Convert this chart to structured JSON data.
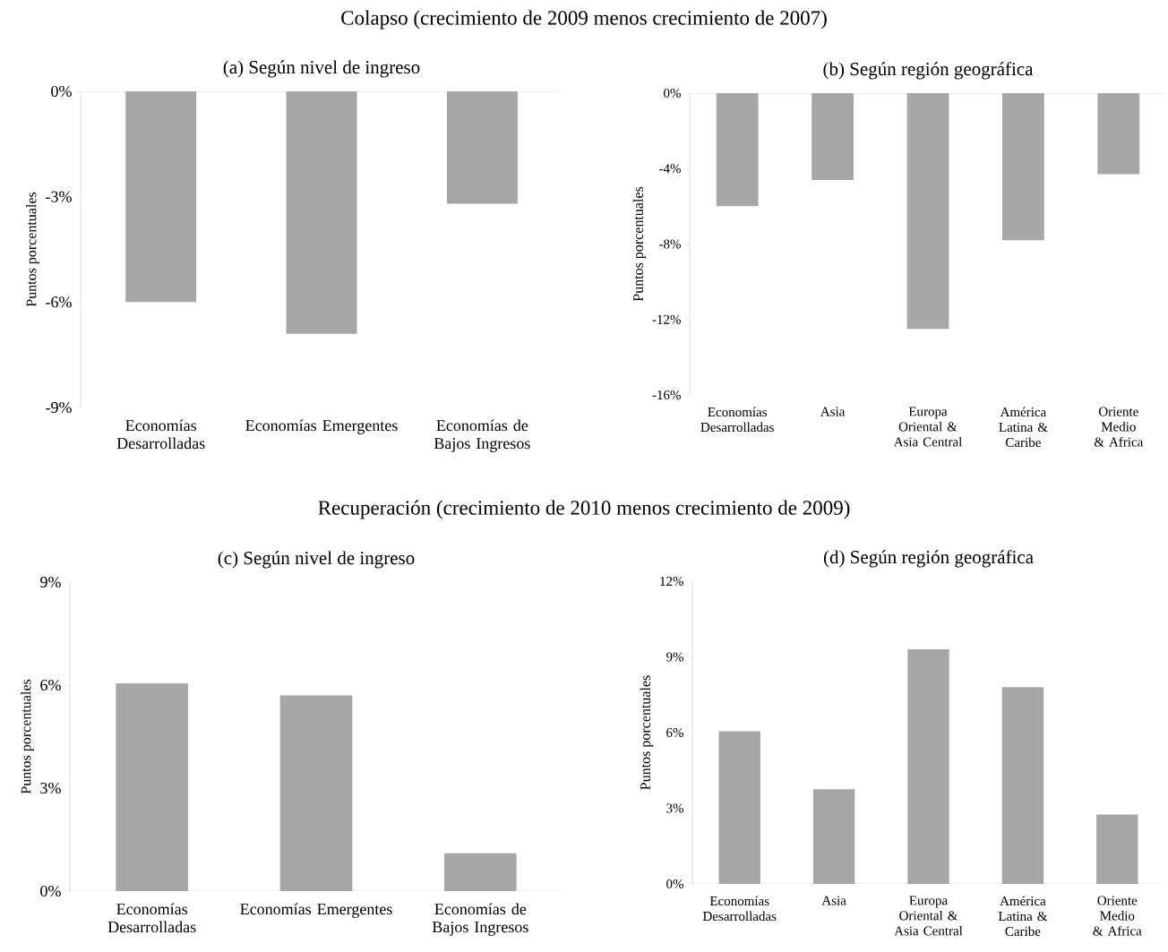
{
  "chart_data": [
    {
      "type": "bar",
      "title": "(a) Según nivel de ingreso",
      "annotations": [
        "Colapso (crecimiento de 2009 menos crecimiento de 2007)"
      ],
      "ylabel": "Puntos porcentuales",
      "categories": [
        "Economías Desarrolladas",
        "Economías Emergentes",
        "Economías de Bajos Ingresos"
      ],
      "values": [
        -6.0,
        -6.9,
        -3.2
      ],
      "color": "#a6a6a6",
      "ylim": [
        -9,
        0
      ],
      "yticks": [
        {
          "value": -9,
          "label": "-9%"
        },
        {
          "value": -6,
          "label": "-6%"
        },
        {
          "value": -3,
          "label": "-3%"
        },
        {
          "value": 0,
          "label": "0%"
        }
      ]
    },
    {
      "type": "bar",
      "title": "(b) Según región geográfica",
      "ylabel": "Puntos porcentuales",
      "categories": [
        "Economías Desarrolladas",
        "Asia",
        "Europa Oriental & Asia Central",
        "América Latina & Caribe",
        "Oriente Medio & Africa"
      ],
      "values": [
        -6.0,
        -4.6,
        -12.5,
        -7.8,
        -4.3
      ],
      "color": "#a6a6a6",
      "ylim": [
        -16,
        0
      ],
      "yticks": [
        {
          "value": -16,
          "label": "-16%"
        },
        {
          "value": -12,
          "label": "-12%"
        },
        {
          "value": -8,
          "label": "-8%"
        },
        {
          "value": -4,
          "label": "-4%"
        },
        {
          "value": 0,
          "label": "0%"
        }
      ]
    },
    {
      "type": "bar",
      "title": "(c) Según nivel de ingreso",
      "annotations": [
        "Recuperación (crecimiento de 2010 menos crecimiento de 2009)"
      ],
      "ylabel": "Puntos porcentuales",
      "categories": [
        "Economías Desarrolladas",
        "Economías Emergentes",
        "Economías de Bajos Ingresos"
      ],
      "values": [
        6.05,
        5.7,
        1.1
      ],
      "color": "#a6a6a6",
      "ylim": [
        0,
        9
      ],
      "yticks": [
        {
          "value": 0,
          "label": "0%"
        },
        {
          "value": 3,
          "label": "3%"
        },
        {
          "value": 6,
          "label": "6%"
        },
        {
          "value": 9,
          "label": "9%"
        }
      ]
    },
    {
      "type": "bar",
      "title": "(d) Según región geográfica",
      "ylabel": "Puntos porcentuales",
      "categories": [
        "Economías Desarrolladas",
        "Asia",
        "Europa Oriental & Asia Central",
        "América Latina & Caribe",
        "Oriente Medio & Africa"
      ],
      "values": [
        6.05,
        3.75,
        9.3,
        7.8,
        2.75
      ],
      "color": "#a6a6a6",
      "ylim": [
        0,
        12
      ],
      "yticks": [
        {
          "value": 0,
          "label": "0%"
        },
        {
          "value": 3,
          "label": "3%"
        },
        {
          "value": 6,
          "label": "6%"
        },
        {
          "value": 9,
          "label": "9%"
        },
        {
          "value": 12,
          "label": "12%"
        }
      ]
    }
  ]
}
